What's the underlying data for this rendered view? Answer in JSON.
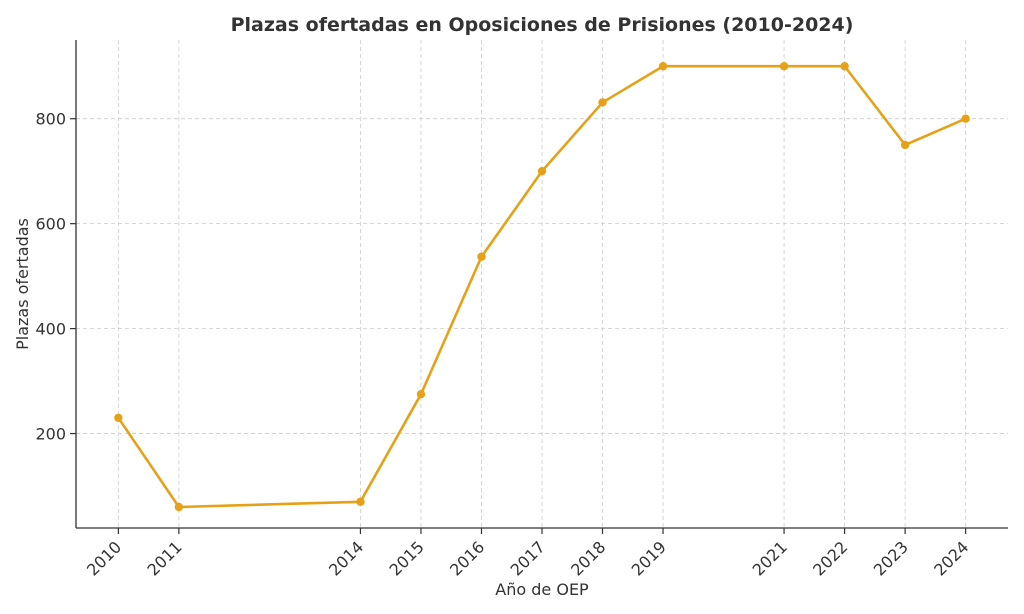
{
  "chart_data": {
    "type": "line",
    "title": "Plazas ofertadas en Oposiciones de Prisiones (2010-2024)",
    "xlabel": "Año de OEP",
    "ylabel": "Plazas ofertadas",
    "x": [
      2010,
      2011,
      2014,
      2015,
      2016,
      2017,
      2018,
      2019,
      2021,
      2022,
      2023,
      2024
    ],
    "series": [
      {
        "values": [
          230,
          60,
          70,
          275,
          537,
          700,
          831,
          900,
          900,
          900,
          750,
          800
        ]
      }
    ],
    "y_ticks": [
      200,
      400,
      600,
      800
    ],
    "ylim": [
      20,
      950
    ],
    "xlim": [
      2009.3,
      2024.7
    ],
    "grid": true,
    "line_color": "#E6A117",
    "text_color": "#333333"
  }
}
